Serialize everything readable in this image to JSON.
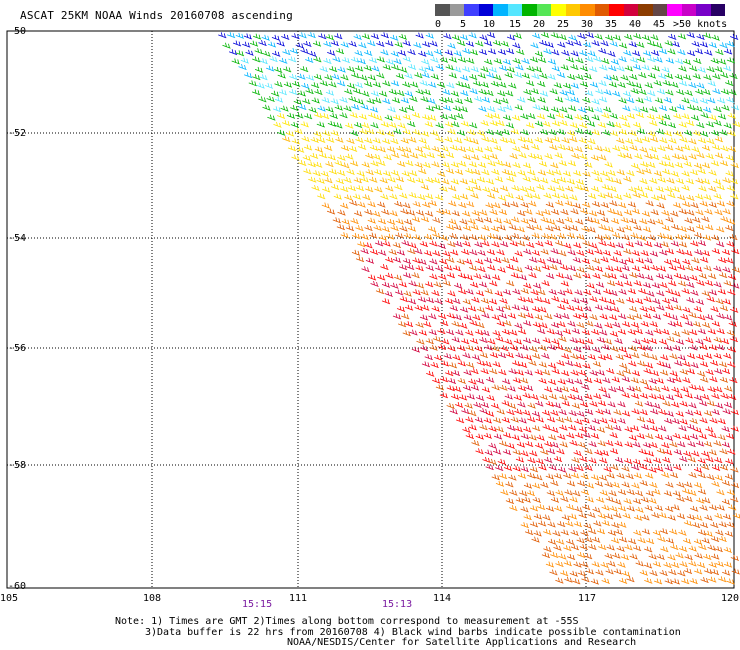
{
  "header": {
    "title": "ASCAT 25KM NOAA Winds 20160708 ascending"
  },
  "speed_scale": {
    "colors": [
      "#555555",
      "#9a9a9a",
      "#3f3fff",
      "#0000d8",
      "#00b4ff",
      "#55e6ff",
      "#00b400",
      "#55e655",
      "#ffff00",
      "#ffc800",
      "#ff8c00",
      "#e05a00",
      "#ff0000",
      "#d2003c",
      "#8c3c00",
      "#644646",
      "#ff00ff",
      "#c800c8",
      "#7800c8",
      "#280064"
    ],
    "labels": [
      "0",
      "5",
      "10",
      "15",
      "20",
      "25",
      "30",
      "35",
      "40",
      "45",
      ">50 knots"
    ]
  },
  "map": {
    "lat_labels": [
      "-50",
      "-52",
      "-54",
      "-56",
      "-58",
      "-60"
    ],
    "lon_labels": [
      "105",
      "108",
      "111",
      "114",
      "117",
      "120"
    ],
    "time_labels": [
      "15:15",
      "15:13"
    ]
  },
  "notes": {
    "line1": "Note: 1) Times are GMT 2)Times along bottom correspond to measurement at -55S",
    "line2": "3)Data buffer is 22 hrs from 20160708 4) Black wind barbs indicate possible contamination",
    "line3": "NOAA/NESDIS/Center for Satellite Applications and Research"
  }
}
